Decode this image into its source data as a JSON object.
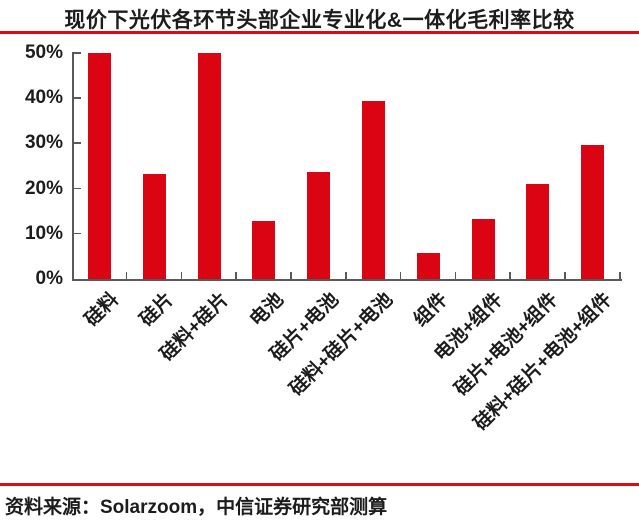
{
  "header": {
    "title": "现价下光伏各环节头部企业专业化&一体化毛利率比较"
  },
  "footer": {
    "source": "资料来源：Solarzoom，中信证券研究部测算"
  },
  "colors": {
    "bar": "#DB0412",
    "rule": "#E30613",
    "axis": "#595959",
    "text": "#1c1c1c",
    "background": "#ffffff"
  },
  "chart_data": {
    "type": "bar",
    "title": "现价下光伏各环节头部企业专业化&一体化毛利率比较",
    "categories": [
      "硅料",
      "硅片",
      "硅料+硅片",
      "电池",
      "硅片+电池",
      "硅料+硅片+电池",
      "组件",
      "电池+组件",
      "硅片+电池+组件",
      "硅料+硅片+电池+组件"
    ],
    "values": [
      50,
      23.3,
      50,
      12.8,
      23.7,
      39.4,
      5.8,
      13.2,
      21.1,
      29.7
    ],
    "unit": "%",
    "xlabel": "",
    "ylabel": "",
    "ylim": [
      0,
      50
    ],
    "yticks": [
      "0%",
      "10%",
      "20%",
      "30%",
      "40%",
      "50%"
    ],
    "grid": false,
    "legend": null,
    "bar_color": "#DB0412",
    "x_label_rotation_deg": -45,
    "source": "资料来源：Solarzoom，中信证券研究部测算"
  }
}
